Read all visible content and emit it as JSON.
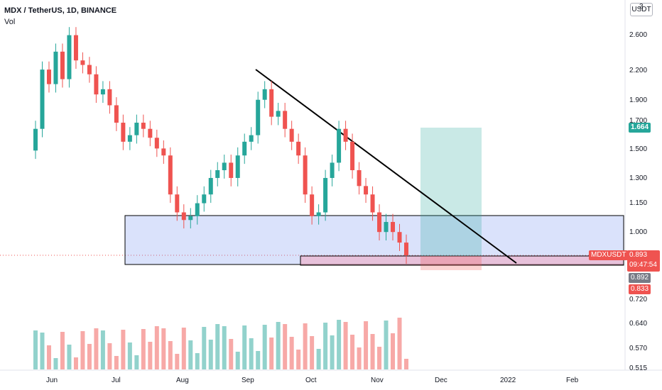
{
  "header": {
    "title": "MDX / TetherUS, 1D, BINANCE",
    "volume_label": "Vol"
  },
  "currency_button": "USDT",
  "y_axis": {
    "ticks": [
      "3",
      "2.600",
      "2.200",
      "1.900",
      "1.700",
      "1.500",
      "1.300",
      "1.150",
      "1.000",
      "0.720",
      "0.640",
      "0.570",
      "0.515"
    ]
  },
  "x_axis": {
    "ticks": [
      "Jun",
      "Jul",
      "Aug",
      "Sep",
      "Oct",
      "Nov",
      "Dec",
      "2022",
      "Feb"
    ]
  },
  "price_tags": {
    "target": "1.664",
    "symbol": "MDXUSDT",
    "last_price": "0.893",
    "countdown": "09:47:54",
    "gray": "0.892",
    "stop": "0.833"
  },
  "colors": {
    "up": "#26a69a",
    "down": "#ef5350",
    "support_zone": "#6a8cf0",
    "target_zone": "#26a69a"
  },
  "chart_data": {
    "type": "candlestick",
    "title": "MDX / TetherUS, 1D, BINANCE",
    "scale": "log",
    "ylim": [
      0.5,
      3.0
    ],
    "x_range": [
      "May 27",
      "Feb 28"
    ],
    "closes": [
      1.65,
      2.2,
      2.05,
      2.4,
      2.1,
      2.6,
      2.3,
      2.25,
      2.15,
      1.95,
      2.0,
      1.85,
      1.7,
      1.55,
      1.6,
      1.7,
      1.65,
      1.58,
      1.5,
      1.45,
      1.2,
      1.1,
      1.06,
      1.08,
      1.15,
      1.2,
      1.3,
      1.35,
      1.4,
      1.3,
      1.45,
      1.55,
      1.6,
      1.9,
      2.0,
      1.75,
      1.8,
      1.65,
      1.55,
      1.45,
      1.2,
      1.08,
      1.1,
      1.3,
      1.4,
      1.65,
      1.55,
      1.35,
      1.25,
      1.2,
      1.1,
      1.0,
      1.05,
      1.0,
      0.95,
      0.893
    ],
    "volume_note": "volume bars rendered in lower pane"
  }
}
